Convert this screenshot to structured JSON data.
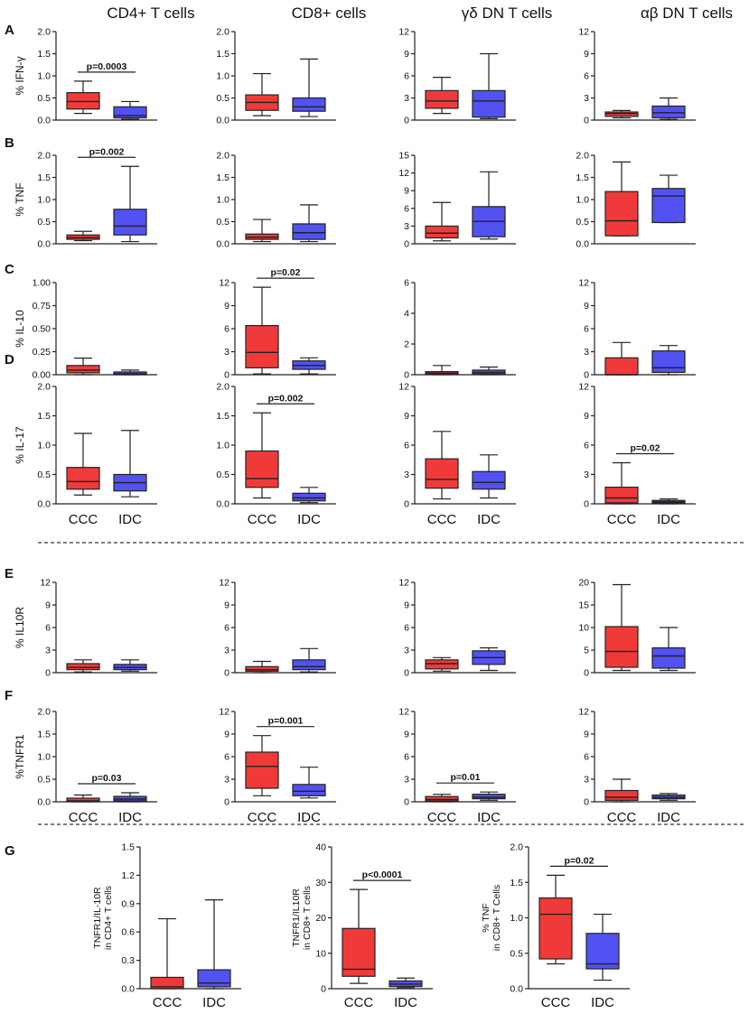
{
  "figure": {
    "colors": {
      "ccc": "#f03a3a",
      "idc": "#5252f2",
      "outline": "#222222"
    },
    "column_titles": [
      "CD4+ T cells",
      "CD8+ cells",
      "γδ DN T cells",
      "αβ DN T cells"
    ],
    "x_categories": [
      "CCC",
      "IDC"
    ]
  },
  "chart_data": [
    {
      "type": "box",
      "panel": "A",
      "title": "CD4+ T cells",
      "ylabel": "% IFN-γ",
      "ylim": [
        0,
        2.0
      ],
      "yticks": [
        "0.0",
        "0.5",
        "1.0",
        "1.5",
        "2.0"
      ],
      "pvalue": "p=0.0003",
      "categories": [
        "CCC",
        "IDC"
      ],
      "boxes": [
        {
          "min": 0.15,
          "q1": 0.25,
          "median": 0.42,
          "q3": 0.62,
          "max": 0.88
        },
        {
          "min": 0.02,
          "q1": 0.05,
          "median": 0.1,
          "q3": 0.3,
          "max": 0.42
        }
      ]
    },
    {
      "type": "box",
      "panel": "A",
      "title": "CD8+ cells",
      "ylabel": "",
      "ylim": [
        0,
        2.0
      ],
      "yticks": [
        "0.0",
        "0.5",
        "1.0",
        "1.5",
        "2.0"
      ],
      "pvalue": "",
      "categories": [
        "CCC",
        "IDC"
      ],
      "boxes": [
        {
          "min": 0.1,
          "q1": 0.22,
          "median": 0.4,
          "q3": 0.57,
          "max": 1.05
        },
        {
          "min": 0.08,
          "q1": 0.2,
          "median": 0.3,
          "q3": 0.5,
          "max": 1.38
        }
      ]
    },
    {
      "type": "box",
      "panel": "A",
      "title": "γδ DN T cells",
      "ylabel": "",
      "ylim": [
        0,
        12
      ],
      "yticks": [
        "0",
        "3",
        "6",
        "9",
        "12"
      ],
      "pvalue": "",
      "categories": [
        "CCC",
        "IDC"
      ],
      "boxes": [
        {
          "min": 0.9,
          "q1": 1.6,
          "median": 2.6,
          "q3": 4.0,
          "max": 5.8
        },
        {
          "min": 0.2,
          "q1": 0.4,
          "median": 2.6,
          "q3": 4.0,
          "max": 9.0
        }
      ]
    },
    {
      "type": "box",
      "panel": "A",
      "title": "αβ DN T cells",
      "ylabel": "",
      "ylim": [
        0,
        12
      ],
      "yticks": [
        "0",
        "3",
        "6",
        "9",
        "12"
      ],
      "pvalue": "",
      "categories": [
        "CCC",
        "IDC"
      ],
      "boxes": [
        {
          "min": 0.3,
          "q1": 0.5,
          "median": 0.9,
          "q3": 1.1,
          "max": 1.3
        },
        {
          "min": 0.1,
          "q1": 0.3,
          "median": 1.0,
          "q3": 1.9,
          "max": 3.0
        }
      ]
    },
    {
      "type": "box",
      "panel": "B",
      "title": "CD4+ T cells",
      "ylabel": "% TNF",
      "ylim": [
        0,
        2.0
      ],
      "yticks": [
        "0.0",
        "0.5",
        "1.0",
        "1.5",
        "2.0"
      ],
      "pvalue": "p=0.002",
      "categories": [
        "CCC",
        "IDC"
      ],
      "boxes": [
        {
          "min": 0.07,
          "q1": 0.1,
          "median": 0.14,
          "q3": 0.2,
          "max": 0.28
        },
        {
          "min": 0.05,
          "q1": 0.2,
          "median": 0.4,
          "q3": 0.78,
          "max": 1.75
        }
      ]
    },
    {
      "type": "box",
      "panel": "B",
      "title": "CD8+ cells",
      "ylabel": "",
      "ylim": [
        0,
        2.0
      ],
      "yticks": [
        "0.0",
        "0.5",
        "1.0",
        "1.5",
        "2.0"
      ],
      "pvalue": "",
      "categories": [
        "CCC",
        "IDC"
      ],
      "boxes": [
        {
          "min": 0.05,
          "q1": 0.1,
          "median": 0.15,
          "q3": 0.22,
          "max": 0.55
        },
        {
          "min": 0.05,
          "q1": 0.1,
          "median": 0.25,
          "q3": 0.45,
          "max": 0.88
        }
      ]
    },
    {
      "type": "box",
      "panel": "B",
      "title": "γδ DN T cells",
      "ylabel": "",
      "ylim": [
        0,
        15
      ],
      "yticks": [
        "0",
        "3",
        "6",
        "9",
        "12",
        "15"
      ],
      "pvalue": "",
      "categories": [
        "CCC",
        "IDC"
      ],
      "boxes": [
        {
          "min": 0.5,
          "q1": 1.0,
          "median": 1.8,
          "q3": 3.0,
          "max": 7.0
        },
        {
          "min": 0.8,
          "q1": 1.2,
          "median": 3.8,
          "q3": 6.3,
          "max": 12.2
        }
      ]
    },
    {
      "type": "box",
      "panel": "B",
      "title": "αβ DN T cells",
      "ylabel": "",
      "ylim": [
        0,
        2.0
      ],
      "yticks": [
        "0.0",
        "0.5",
        "1.0",
        "1.5",
        "2.0"
      ],
      "pvalue": "",
      "categories": [
        "CCC",
        "IDC"
      ],
      "boxes": [
        {
          "min": 0.18,
          "q1": 0.18,
          "median": 0.52,
          "q3": 1.18,
          "max": 1.85
        },
        {
          "min": 0.48,
          "q1": 0.48,
          "median": 1.08,
          "q3": 1.25,
          "max": 1.55
        }
      ]
    },
    {
      "type": "box",
      "panel": "C",
      "title": "CD4+ T cells",
      "ylabel": "% IL-10",
      "ylim": [
        0,
        1.0
      ],
      "yticks": [
        "0.00",
        "0.25",
        "0.50",
        "0.75",
        "1.00"
      ],
      "pvalue": "",
      "categories": [
        "CCC",
        "IDC"
      ],
      "boxes": [
        {
          "min": 0.0,
          "q1": 0.02,
          "median": 0.05,
          "q3": 0.1,
          "max": 0.18
        },
        {
          "min": 0.0,
          "q1": 0.0,
          "median": 0.01,
          "q3": 0.03,
          "max": 0.05
        }
      ]
    },
    {
      "type": "box",
      "panel": "C",
      "title": "CD8+ cells",
      "ylabel": "",
      "ylim": [
        0,
        12
      ],
      "yticks": [
        "0",
        "3",
        "6",
        "9",
        "12"
      ],
      "pvalue": "p=0.02",
      "categories": [
        "CCC",
        "IDC"
      ],
      "boxes": [
        {
          "min": 0.1,
          "q1": 0.9,
          "median": 2.9,
          "q3": 6.4,
          "max": 11.4
        },
        {
          "min": 0.1,
          "q1": 0.7,
          "median": 1.2,
          "q3": 1.8,
          "max": 2.2
        }
      ]
    },
    {
      "type": "box",
      "panel": "C",
      "title": "γδ DN T cells",
      "ylabel": "",
      "ylim": [
        0,
        6
      ],
      "yticks": [
        "0",
        "2",
        "4",
        "6"
      ],
      "pvalue": "",
      "categories": [
        "CCC",
        "IDC"
      ],
      "boxes": [
        {
          "min": 0.0,
          "q1": 0.02,
          "median": 0.1,
          "q3": 0.2,
          "max": 0.6
        },
        {
          "min": 0.0,
          "q1": 0.05,
          "median": 0.15,
          "q3": 0.3,
          "max": 0.5
        }
      ]
    },
    {
      "type": "box",
      "panel": "C",
      "title": "αβ DN T cells",
      "ylabel": "",
      "ylim": [
        0,
        12
      ],
      "yticks": [
        "0",
        "3",
        "6",
        "9",
        "12"
      ],
      "pvalue": "",
      "categories": [
        "CCC",
        "IDC"
      ],
      "boxes": [
        {
          "min": 0.0,
          "q1": 0.0,
          "median": 0.0,
          "q3": 2.2,
          "max": 4.2
        },
        {
          "min": 0.0,
          "q1": 0.3,
          "median": 0.9,
          "q3": 3.1,
          "max": 3.8
        }
      ]
    },
    {
      "type": "box",
      "panel": "D",
      "title": "CD4+ T cells",
      "ylabel": "% IL-17",
      "ylim": [
        0,
        2.0
      ],
      "yticks": [
        "0.0",
        "0.5",
        "1.0",
        "1.5",
        "2.0"
      ],
      "pvalue": "",
      "categories": [
        "CCC",
        "IDC"
      ],
      "boxes": [
        {
          "min": 0.15,
          "q1": 0.25,
          "median": 0.38,
          "q3": 0.62,
          "max": 1.2
        },
        {
          "min": 0.12,
          "q1": 0.22,
          "median": 0.36,
          "q3": 0.5,
          "max": 1.25
        }
      ]
    },
    {
      "type": "box",
      "panel": "D",
      "title": "CD8+ cells",
      "ylabel": "",
      "ylim": [
        0,
        2.0
      ],
      "yticks": [
        "0.0",
        "0.5",
        "1.0",
        "1.5",
        "2.0"
      ],
      "pvalue": "p=0.002",
      "categories": [
        "CCC",
        "IDC"
      ],
      "boxes": [
        {
          "min": 0.1,
          "q1": 0.28,
          "median": 0.43,
          "q3": 0.9,
          "max": 1.55
        },
        {
          "min": 0.02,
          "q1": 0.05,
          "median": 0.1,
          "q3": 0.18,
          "max": 0.28
        }
      ]
    },
    {
      "type": "box",
      "panel": "D",
      "title": "γδ DN T cells",
      "ylabel": "",
      "ylim": [
        0,
        12
      ],
      "yticks": [
        "0",
        "3",
        "6",
        "9",
        "12"
      ],
      "pvalue": "",
      "categories": [
        "CCC",
        "IDC"
      ],
      "boxes": [
        {
          "min": 0.5,
          "q1": 1.6,
          "median": 2.5,
          "q3": 4.6,
          "max": 7.4
        },
        {
          "min": 0.6,
          "q1": 1.5,
          "median": 2.2,
          "q3": 3.3,
          "max": 5.0
        }
      ]
    },
    {
      "type": "box",
      "panel": "D",
      "title": "αβ DN T cells",
      "ylabel": "",
      "ylim": [
        0,
        12
      ],
      "yticks": [
        "0",
        "3",
        "6",
        "9",
        "12"
      ],
      "pvalue": "p=0.02",
      "categories": [
        "CCC",
        "IDC"
      ],
      "boxes": [
        {
          "min": 0.0,
          "q1": 0.1,
          "median": 0.6,
          "q3": 1.7,
          "max": 4.2
        },
        {
          "min": 0.0,
          "q1": 0.1,
          "median": 0.2,
          "q3": 0.35,
          "max": 0.5
        }
      ]
    },
    {
      "type": "box",
      "panel": "E",
      "title": "CD4+ T cells",
      "ylabel": "% IL10R",
      "ylim": [
        0,
        12
      ],
      "yticks": [
        "0",
        "3",
        "6",
        "9",
        "12"
      ],
      "pvalue": "",
      "categories": [
        "CCC",
        "IDC"
      ],
      "boxes": [
        {
          "min": 0.1,
          "q1": 0.4,
          "median": 0.7,
          "q3": 1.2,
          "max": 1.7
        },
        {
          "min": 0.2,
          "q1": 0.4,
          "median": 0.7,
          "q3": 1.1,
          "max": 1.7
        }
      ]
    },
    {
      "type": "box",
      "panel": "E",
      "title": "CD8+ cells",
      "ylabel": "",
      "ylim": [
        0,
        12
      ],
      "yticks": [
        "0",
        "3",
        "6",
        "9",
        "12"
      ],
      "pvalue": "",
      "categories": [
        "CCC",
        "IDC"
      ],
      "boxes": [
        {
          "min": 0.0,
          "q1": 0.2,
          "median": 0.4,
          "q3": 0.8,
          "max": 1.5
        },
        {
          "min": 0.1,
          "q1": 0.4,
          "median": 0.8,
          "q3": 1.7,
          "max": 3.2
        }
      ]
    },
    {
      "type": "box",
      "panel": "E",
      "title": "γδ DN T cells",
      "ylabel": "",
      "ylim": [
        0,
        12
      ],
      "yticks": [
        "0",
        "3",
        "6",
        "9",
        "12"
      ],
      "pvalue": "",
      "categories": [
        "CCC",
        "IDC"
      ],
      "boxes": [
        {
          "min": 0.2,
          "q1": 0.5,
          "median": 1.2,
          "q3": 1.7,
          "max": 2.0
        },
        {
          "min": 0.3,
          "q1": 1.1,
          "median": 2.0,
          "q3": 2.9,
          "max": 3.3
        }
      ]
    },
    {
      "type": "box",
      "panel": "E",
      "title": "αβ DN T cells",
      "ylabel": "",
      "ylim": [
        0,
        20
      ],
      "yticks": [
        "0",
        "5",
        "10",
        "15",
        "20"
      ],
      "pvalue": "",
      "categories": [
        "CCC",
        "IDC"
      ],
      "boxes": [
        {
          "min": 0.5,
          "q1": 1.2,
          "median": 4.7,
          "q3": 10.2,
          "max": 19.5
        },
        {
          "min": 0.5,
          "q1": 1.0,
          "median": 3.7,
          "q3": 5.5,
          "max": 10.0
        }
      ]
    },
    {
      "type": "box",
      "panel": "F",
      "title": "CD4+ T cells",
      "ylabel": "%TNFR1",
      "ylim": [
        0,
        2.0
      ],
      "yticks": [
        "0.0",
        "0.5",
        "1.0",
        "1.5",
        "2.0"
      ],
      "pvalue": "p=0.03",
      "categories": [
        "CCC",
        "IDC"
      ],
      "boxes": [
        {
          "min": 0.0,
          "q1": 0.0,
          "median": 0.02,
          "q3": 0.08,
          "max": 0.15
        },
        {
          "min": 0.0,
          "q1": 0.02,
          "median": 0.06,
          "q3": 0.12,
          "max": 0.2
        }
      ]
    },
    {
      "type": "box",
      "panel": "F",
      "title": "CD8+ cells",
      "ylabel": "",
      "ylim": [
        0,
        12
      ],
      "yticks": [
        "0",
        "3",
        "6",
        "9",
        "12"
      ],
      "pvalue": "p=0.001",
      "categories": [
        "CCC",
        "IDC"
      ],
      "boxes": [
        {
          "min": 0.8,
          "q1": 1.8,
          "median": 4.7,
          "q3": 6.6,
          "max": 8.8
        },
        {
          "min": 0.5,
          "q1": 0.8,
          "median": 1.4,
          "q3": 2.3,
          "max": 4.6
        }
      ]
    },
    {
      "type": "box",
      "panel": "F",
      "title": "γδ DN T cells",
      "ylabel": "",
      "ylim": [
        0,
        12
      ],
      "yticks": [
        "0",
        "3",
        "6",
        "9",
        "12"
      ],
      "pvalue": "p=0.01",
      "categories": [
        "CCC",
        "IDC"
      ],
      "boxes": [
        {
          "min": 0.0,
          "q1": 0.1,
          "median": 0.3,
          "q3": 0.7,
          "max": 1.0
        },
        {
          "min": 0.2,
          "q1": 0.4,
          "median": 0.6,
          "q3": 1.0,
          "max": 1.3
        }
      ]
    },
    {
      "type": "box",
      "panel": "F",
      "title": "αβ DN T cells",
      "ylabel": "",
      "ylim": [
        0,
        12
      ],
      "yticks": [
        "0",
        "3",
        "6",
        "9",
        "12"
      ],
      "pvalue": "",
      "categories": [
        "CCC",
        "IDC"
      ],
      "boxes": [
        {
          "min": 0.0,
          "q1": 0.2,
          "median": 0.6,
          "q3": 1.5,
          "max": 3.0
        },
        {
          "min": 0.2,
          "q1": 0.4,
          "median": 0.6,
          "q3": 0.9,
          "max": 1.1
        }
      ]
    },
    {
      "type": "box",
      "panel": "G",
      "title": "",
      "ylabel": [
        "TNFR1/IL-10R",
        "in CD4+ T cells"
      ],
      "ylim": [
        0,
        1.5
      ],
      "yticks": [
        "0.0",
        "0.3",
        "0.6",
        "0.9",
        "1.2",
        "1.5"
      ],
      "pvalue": "",
      "categories": [
        "CCC",
        "IDC"
      ],
      "boxes": [
        {
          "min": 0.0,
          "q1": 0.0,
          "median": 0.02,
          "q3": 0.12,
          "max": 0.74
        },
        {
          "min": 0.0,
          "q1": 0.02,
          "median": 0.06,
          "q3": 0.2,
          "max": 0.94
        }
      ]
    },
    {
      "type": "box",
      "panel": "G",
      "title": "",
      "ylabel": [
        "TNFR1/IL10R",
        "in CD8+ T cells"
      ],
      "ylim": [
        0,
        40
      ],
      "yticks": [
        "0",
        "10",
        "20",
        "30",
        "40"
      ],
      "pvalue": "p<0.0001",
      "categories": [
        "CCC",
        "IDC"
      ],
      "boxes": [
        {
          "min": 1.5,
          "q1": 3.5,
          "median": 5.5,
          "q3": 17.0,
          "max": 28.0
        },
        {
          "min": 0.3,
          "q1": 0.6,
          "median": 1.3,
          "q3": 2.2,
          "max": 3.0
        }
      ]
    },
    {
      "type": "box",
      "panel": "G",
      "title": "",
      "ylabel": [
        "% TNF",
        "in CD8+ T Cells"
      ],
      "ylim": [
        0,
        2.0
      ],
      "yticks": [
        "0.0",
        "0.5",
        "1.0",
        "1.5",
        "2.0"
      ],
      "pvalue": "p=0.02",
      "categories": [
        "CCC",
        "IDC"
      ],
      "boxes": [
        {
          "min": 0.35,
          "q1": 0.42,
          "median": 1.05,
          "q3": 1.28,
          "max": 1.6
        },
        {
          "min": 0.12,
          "q1": 0.28,
          "median": 0.35,
          "q3": 0.78,
          "max": 1.05
        }
      ]
    }
  ]
}
